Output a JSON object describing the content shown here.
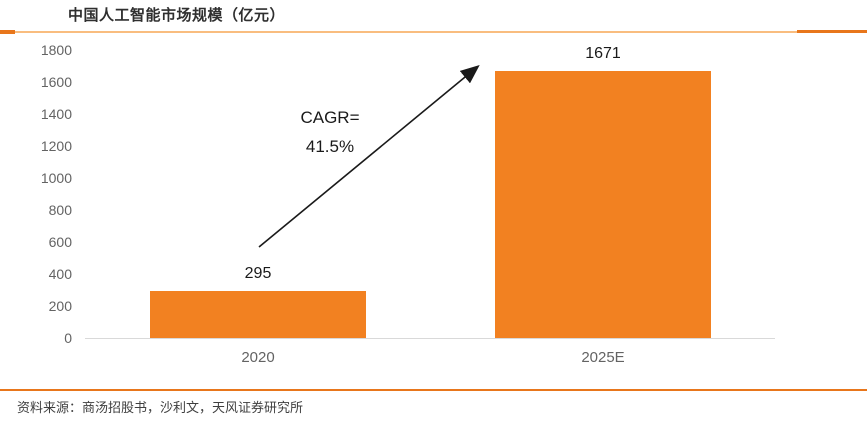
{
  "title": "中国人工智能市场规模（亿元）",
  "source_note": "资料来源：商汤招股书，沙利文，天风证券研究所",
  "annotation": {
    "line1": "CAGR=",
    "line2": "41.5%"
  },
  "colors": {
    "bar": "#F28121",
    "accent_dark": "#E8761B",
    "accent_light": "#F9BD7F",
    "axis_text": "#636363",
    "value_text": "#1a1a1a",
    "baseline": "#d9d9d9"
  },
  "chart_data": {
    "type": "bar",
    "title": "中国人工智能市场规模（亿元）",
    "categories": [
      "2020",
      "2025E"
    ],
    "values": [
      295,
      1671
    ],
    "value_labels": [
      "295",
      "1671"
    ],
    "xlabel": "",
    "ylabel": "",
    "ylim": [
      0,
      1800
    ],
    "ytick_step": 200,
    "yticks": [
      0,
      200,
      400,
      600,
      800,
      1000,
      1200,
      1400,
      1600,
      1800
    ],
    "grid": false,
    "legend": false,
    "annotation_text": "CAGR= 41.5%"
  }
}
